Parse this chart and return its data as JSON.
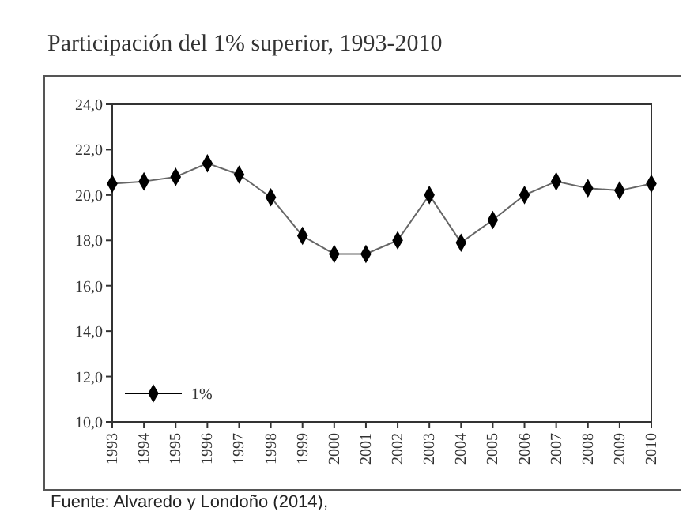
{
  "chart_data": {
    "type": "line",
    "title": "Participación del 1% superior, 1993-2010",
    "categories": [
      "1993",
      "1994",
      "1995",
      "1996",
      "1997",
      "1998",
      "1999",
      "2000",
      "2001",
      "2002",
      "2003",
      "2004",
      "2005",
      "2006",
      "2007",
      "2008",
      "2009",
      "2010"
    ],
    "series": [
      {
        "name": "1%",
        "color": "#000000",
        "values": [
          20.5,
          20.6,
          20.8,
          21.4,
          20.9,
          19.9,
          18.2,
          17.4,
          17.4,
          18.0,
          20.0,
          17.9,
          18.9,
          20.0,
          20.6,
          20.3,
          20.2,
          20.5
        ]
      }
    ],
    "ylim": [
      10,
      24
    ],
    "yticks": [
      {
        "value": 10,
        "label": "10,0"
      },
      {
        "value": 12,
        "label": "12,0"
      },
      {
        "value": 14,
        "label": "14,0"
      },
      {
        "value": 16,
        "label": "16,0"
      },
      {
        "value": 18,
        "label": "18,0"
      },
      {
        "value": 20,
        "label": "20,0"
      },
      {
        "value": 22,
        "label": "22,0"
      },
      {
        "value": 24,
        "label": "24,0"
      }
    ],
    "marker": "diamond",
    "line_style": "solid",
    "legend": "bottom left",
    "grid": false,
    "annotations": [
      "Fuente: Alvaredo y Londoño (2014),"
    ]
  }
}
